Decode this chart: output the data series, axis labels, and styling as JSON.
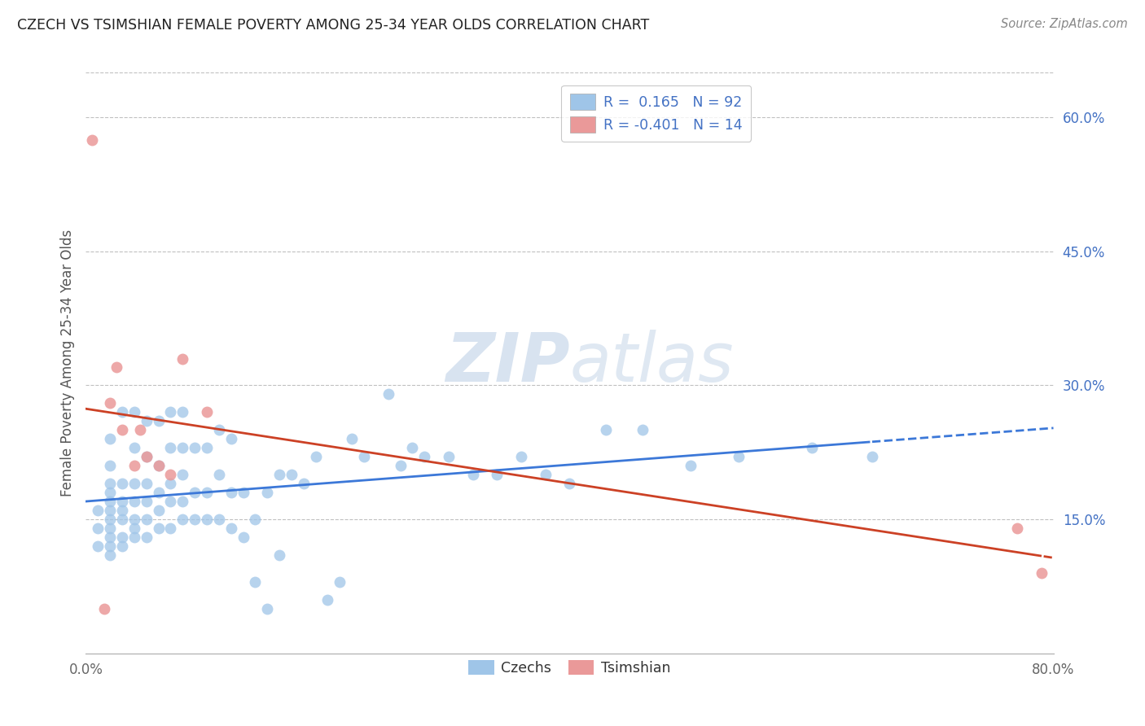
{
  "title": "CZECH VS TSIMSHIAN FEMALE POVERTY AMONG 25-34 YEAR OLDS CORRELATION CHART",
  "source": "Source: ZipAtlas.com",
  "ylabel": "Female Poverty Among 25-34 Year Olds",
  "xlim": [
    0.0,
    0.8
  ],
  "ylim": [
    0.0,
    0.65
  ],
  "ytick_right_vals": [
    0.15,
    0.3,
    0.45,
    0.6
  ],
  "ytick_right_labels": [
    "15.0%",
    "30.0%",
    "45.0%",
    "60.0%"
  ],
  "czech_color": "#9fc5e8",
  "tsimshian_color": "#ea9999",
  "czech_line_color": "#3c78d8",
  "tsimshian_line_color": "#cc4125",
  "czech_R": 0.165,
  "czech_N": 92,
  "tsimshian_R": -0.401,
  "tsimshian_N": 14,
  "legend_label_czech": "Czechs",
  "legend_label_tsimshian": "Tsimshian",
  "background_color": "#ffffff",
  "grid_color": "#c0c0c0",
  "czech_x": [
    0.01,
    0.01,
    0.01,
    0.02,
    0.02,
    0.02,
    0.02,
    0.02,
    0.02,
    0.02,
    0.02,
    0.02,
    0.02,
    0.02,
    0.03,
    0.03,
    0.03,
    0.03,
    0.03,
    0.03,
    0.03,
    0.04,
    0.04,
    0.04,
    0.04,
    0.04,
    0.04,
    0.04,
    0.05,
    0.05,
    0.05,
    0.05,
    0.05,
    0.05,
    0.06,
    0.06,
    0.06,
    0.06,
    0.06,
    0.07,
    0.07,
    0.07,
    0.07,
    0.07,
    0.08,
    0.08,
    0.08,
    0.08,
    0.08,
    0.09,
    0.09,
    0.09,
    0.1,
    0.1,
    0.1,
    0.11,
    0.11,
    0.11,
    0.12,
    0.12,
    0.12,
    0.13,
    0.13,
    0.14,
    0.14,
    0.15,
    0.15,
    0.16,
    0.16,
    0.17,
    0.18,
    0.19,
    0.2,
    0.21,
    0.22,
    0.23,
    0.25,
    0.26,
    0.27,
    0.28,
    0.3,
    0.32,
    0.34,
    0.36,
    0.38,
    0.4,
    0.43,
    0.46,
    0.5,
    0.54,
    0.6,
    0.65
  ],
  "czech_y": [
    0.12,
    0.14,
    0.16,
    0.11,
    0.12,
    0.13,
    0.14,
    0.15,
    0.16,
    0.17,
    0.18,
    0.19,
    0.21,
    0.24,
    0.12,
    0.13,
    0.15,
    0.16,
    0.17,
    0.19,
    0.27,
    0.13,
    0.14,
    0.15,
    0.17,
    0.19,
    0.23,
    0.27,
    0.13,
    0.15,
    0.17,
    0.19,
    0.22,
    0.26,
    0.14,
    0.16,
    0.18,
    0.21,
    0.26,
    0.14,
    0.17,
    0.19,
    0.23,
    0.27,
    0.15,
    0.17,
    0.2,
    0.23,
    0.27,
    0.15,
    0.18,
    0.23,
    0.15,
    0.18,
    0.23,
    0.15,
    0.2,
    0.25,
    0.14,
    0.18,
    0.24,
    0.13,
    0.18,
    0.08,
    0.15,
    0.05,
    0.18,
    0.11,
    0.2,
    0.2,
    0.19,
    0.22,
    0.06,
    0.08,
    0.24,
    0.22,
    0.29,
    0.21,
    0.23,
    0.22,
    0.22,
    0.2,
    0.2,
    0.22,
    0.2,
    0.19,
    0.25,
    0.25,
    0.21,
    0.22,
    0.23,
    0.22
  ],
  "tsimshian_x": [
    0.005,
    0.015,
    0.02,
    0.025,
    0.03,
    0.04,
    0.045,
    0.05,
    0.06,
    0.07,
    0.08,
    0.1,
    0.77,
    0.79
  ],
  "tsimshian_y": [
    0.575,
    0.05,
    0.28,
    0.32,
    0.25,
    0.21,
    0.25,
    0.22,
    0.21,
    0.2,
    0.33,
    0.27,
    0.14,
    0.09
  ]
}
